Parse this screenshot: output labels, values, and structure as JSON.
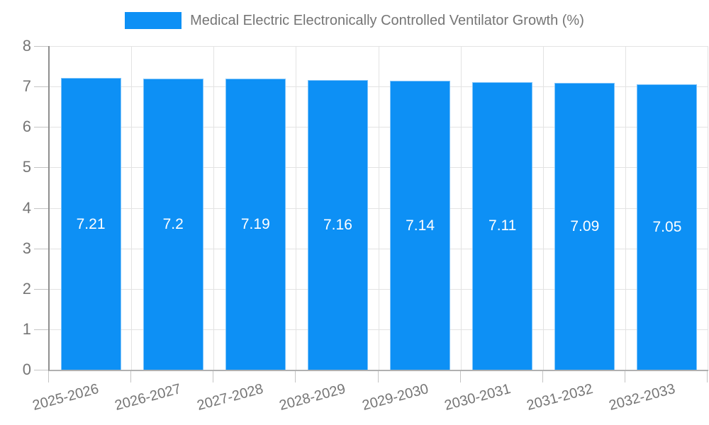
{
  "legend": {
    "label": "Medical Electric Electronically Controlled Ventilator Growth (%)",
    "swatch_color": "#0d90f5"
  },
  "chart_data": {
    "type": "bar",
    "title": "Medical Electric Electronically Controlled Ventilator Growth (%)",
    "categories": [
      "2025-2026",
      "2026-2027",
      "2027-2028",
      "2028-2029",
      "2029-2030",
      "2030-2031",
      "2031-2032",
      "2032-2033"
    ],
    "values": [
      7.21,
      7.2,
      7.19,
      7.16,
      7.14,
      7.11,
      7.09,
      7.05
    ],
    "value_labels": [
      "7.21",
      "7.2",
      "7.19",
      "7.16",
      "7.14",
      "7.11",
      "7.09",
      "7.05"
    ],
    "xlabel": "",
    "ylabel": "",
    "ylim": [
      0,
      8
    ],
    "yticks": [
      0,
      1,
      2,
      3,
      4,
      5,
      6,
      7,
      8
    ],
    "grid": true,
    "legend_position": "top",
    "colors": {
      "bar": "#0d90f5",
      "bar_border": "#7fc4fa",
      "value_label": "#ffffff",
      "axis_text": "#757575",
      "grid_line": "#e3e3e3",
      "axis_line": "#a6a6a6",
      "tick_line": "#c4c4c4",
      "background": "#ffffff"
    }
  }
}
